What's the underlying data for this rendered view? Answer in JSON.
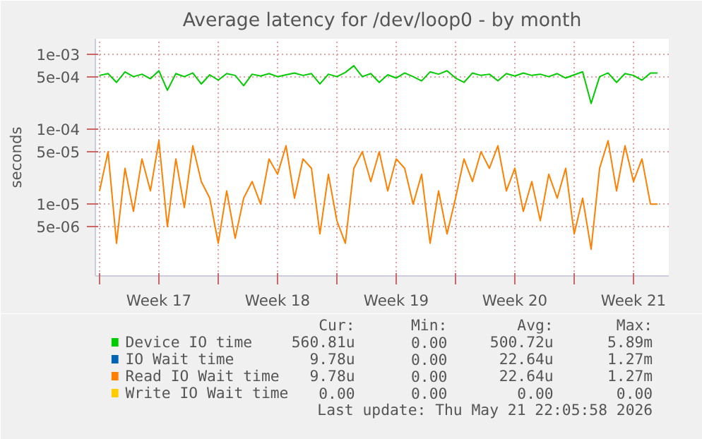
{
  "chart_data": {
    "type": "line",
    "title": "Average latency for /dev/loop0 - by month",
    "ylabel": "seconds",
    "x": [
      "2026-04-19T00:00",
      "2026-04-19T12:00",
      "2026-04-20T00:00",
      "2026-04-20T12:00",
      "2026-04-21T00:00",
      "2026-04-21T12:00",
      "2026-04-22T00:00",
      "2026-04-22T12:00",
      "2026-04-23T00:00",
      "2026-04-23T12:00",
      "2026-04-24T00:00",
      "2026-04-24T12:00",
      "2026-04-25T00:00",
      "2026-04-25T12:00",
      "2026-04-26T00:00",
      "2026-04-26T12:00",
      "2026-04-27T00:00",
      "2026-04-27T12:00",
      "2026-04-28T00:00",
      "2026-04-28T12:00",
      "2026-04-29T00:00",
      "2026-04-29T12:00",
      "2026-04-30T00:00",
      "2026-04-30T12:00",
      "2026-05-01T00:00",
      "2026-05-01T12:00",
      "2026-05-02T00:00",
      "2026-05-02T12:00",
      "2026-05-03T00:00",
      "2026-05-03T12:00",
      "2026-05-04T00:00",
      "2026-05-04T12:00",
      "2026-05-05T00:00",
      "2026-05-05T12:00",
      "2026-05-06T00:00",
      "2026-05-06T12:00",
      "2026-05-07T00:00",
      "2026-05-07T12:00",
      "2026-05-08T00:00",
      "2026-05-08T12:00",
      "2026-05-09T00:00",
      "2026-05-09T12:00",
      "2026-05-10T00:00",
      "2026-05-10T12:00",
      "2026-05-11T00:00",
      "2026-05-11T12:00",
      "2026-05-12T00:00",
      "2026-05-12T12:00",
      "2026-05-13T00:00",
      "2026-05-13T12:00",
      "2026-05-14T00:00",
      "2026-05-14T12:00",
      "2026-05-15T00:00",
      "2026-05-15T12:00",
      "2026-05-16T00:00",
      "2026-05-16T12:00",
      "2026-05-17T00:00",
      "2026-05-17T12:00",
      "2026-05-18T00:00",
      "2026-05-18T12:00",
      "2026-05-19T00:00",
      "2026-05-19T12:00",
      "2026-05-20T00:00",
      "2026-05-20T12:00",
      "2026-05-21T00:00",
      "2026-05-21T12:00",
      "2026-05-21T22:00"
    ],
    "series": [
      {
        "name": "Device IO time",
        "color": "#00cc00",
        "values": [
          0.00052,
          0.00055,
          0.00042,
          0.00058,
          0.0005,
          0.00054,
          0.00047,
          0.0006,
          0.00033,
          0.00055,
          0.0005,
          0.00056,
          0.0004,
          0.00053,
          0.00045,
          0.00055,
          0.00052,
          0.00038,
          0.00054,
          0.00051,
          0.00055,
          0.0005,
          0.00053,
          0.00056,
          0.00052,
          0.00055,
          0.0004,
          0.00054,
          0.0005,
          0.00057,
          0.0007,
          0.0005,
          0.00055,
          0.00042,
          0.00053,
          0.00048,
          0.00056,
          0.0005,
          0.00044,
          0.00058,
          0.00054,
          0.0006,
          0.00048,
          0.00042,
          0.00056,
          0.00052,
          0.00054,
          0.00044,
          0.00055,
          0.00051,
          0.00056,
          0.00052,
          0.00054,
          0.0005,
          0.00055,
          0.00048,
          0.00053,
          0.00058,
          0.00022,
          0.0005,
          0.00056,
          0.00042,
          0.00055,
          0.00052,
          0.00045,
          0.00056,
          0.00056
        ]
      },
      {
        "name": "IO Wait time",
        "color": "#0066b3",
        "values": [
          null,
          null,
          null,
          null,
          null,
          null,
          null,
          null,
          null,
          null,
          null,
          null,
          null,
          null,
          null,
          null,
          null,
          null,
          null,
          null,
          null,
          null,
          null,
          null,
          null,
          null,
          null,
          null,
          null,
          null,
          null,
          null,
          null,
          null,
          null,
          null,
          null,
          null,
          null,
          null,
          null,
          null,
          null,
          null,
          null,
          null,
          null,
          null,
          null,
          null,
          null,
          null,
          null,
          null,
          null,
          null,
          null,
          null,
          null,
          null,
          null,
          null,
          null,
          null,
          null,
          null,
          null
        ]
      },
      {
        "name": "Read IO Wait time",
        "color": "#ff8000",
        "values": [
          1.5e-05,
          5e-05,
          3e-06,
          3e-05,
          8e-06,
          4e-05,
          1.5e-05,
          7e-05,
          5e-06,
          4e-05,
          9e-06,
          6e-05,
          2e-05,
          1.2e-05,
          3e-06,
          1.5e-05,
          3.5e-06,
          1.2e-05,
          2e-05,
          1e-05,
          4e-05,
          2.5e-05,
          6e-05,
          1.2e-05,
          4e-05,
          3e-05,
          4e-06,
          2.5e-05,
          6e-06,
          3e-06,
          3e-05,
          5e-05,
          2e-05,
          5e-05,
          1.5e-05,
          4e-05,
          3e-05,
          1e-05,
          2.5e-05,
          3e-06,
          1.5e-05,
          4e-06,
          1.2e-05,
          4e-05,
          2e-05,
          5e-05,
          3e-05,
          6e-05,
          1.5e-05,
          3e-05,
          8e-06,
          2e-05,
          6e-06,
          2.5e-05,
          1.2e-05,
          3e-05,
          4e-06,
          1.2e-05,
          2.5e-06,
          3e-05,
          7e-05,
          1.5e-05,
          6e-05,
          2e-05,
          4e-05,
          1e-05,
          1e-05
        ]
      },
      {
        "name": "Write IO Wait time",
        "color": "#ffcc00",
        "values": [
          null,
          null,
          null,
          null,
          null,
          null,
          null,
          null,
          null,
          null,
          null,
          null,
          null,
          null,
          null,
          null,
          null,
          null,
          null,
          null,
          null,
          null,
          null,
          null,
          null,
          null,
          null,
          null,
          null,
          null,
          null,
          null,
          null,
          null,
          null,
          null,
          null,
          null,
          null,
          null,
          null,
          null,
          null,
          null,
          null,
          null,
          null,
          null,
          null,
          null,
          null,
          null,
          null,
          null,
          null,
          null,
          null,
          null,
          null,
          null,
          null,
          null,
          null,
          null,
          null,
          null,
          null
        ]
      }
    ],
    "xlim": [
      "2026-04-18T18:00",
      "2026-05-22T14:00"
    ],
    "xticks": [
      {
        "value": "2026-04-19T00:00",
        "label": null
      },
      {
        "value": "2026-04-22T12:00",
        "label": "Week 17"
      },
      {
        "value": "2026-04-26T00:00",
        "label": null
      },
      {
        "value": "2026-04-29T12:00",
        "label": "Week 18"
      },
      {
        "value": "2026-05-03T00:00",
        "label": null
      },
      {
        "value": "2026-05-06T12:00",
        "label": "Week 19"
      },
      {
        "value": "2026-05-10T00:00",
        "label": null
      },
      {
        "value": "2026-05-13T12:00",
        "label": "Week 20"
      },
      {
        "value": "2026-05-17T00:00",
        "label": null
      },
      {
        "value": "2026-05-20T12:00",
        "label": "Week 21"
      }
    ],
    "ylim": [
      1.1e-06,
      0.0016
    ],
    "yticks": [
      {
        "value": 0.001,
        "label": "1e-03"
      },
      {
        "value": 0.0005,
        "label": "5e-04"
      },
      {
        "value": 0.0001,
        "label": "1e-04"
      },
      {
        "value": 5e-05,
        "label": "5e-05"
      },
      {
        "value": 1e-05,
        "label": "1e-05"
      },
      {
        "value": 5e-06,
        "label": "5e-06"
      }
    ],
    "log": true,
    "grid": true,
    "legend": "bottom",
    "annotations": [
      "Cur:",
      "Min:",
      "Avg:",
      "Max:",
      "560.81u",
      "0.00",
      "500.72u",
      "5.89m",
      "9.78u",
      "0.00",
      "22.64u",
      "1.27m",
      "9.78u",
      "0.00",
      "22.64u",
      "1.27m",
      "0.00",
      "0.00",
      "0.00",
      "0.00",
      "Last update: Thu May 21 22:05:58 2026"
    ]
  }
}
